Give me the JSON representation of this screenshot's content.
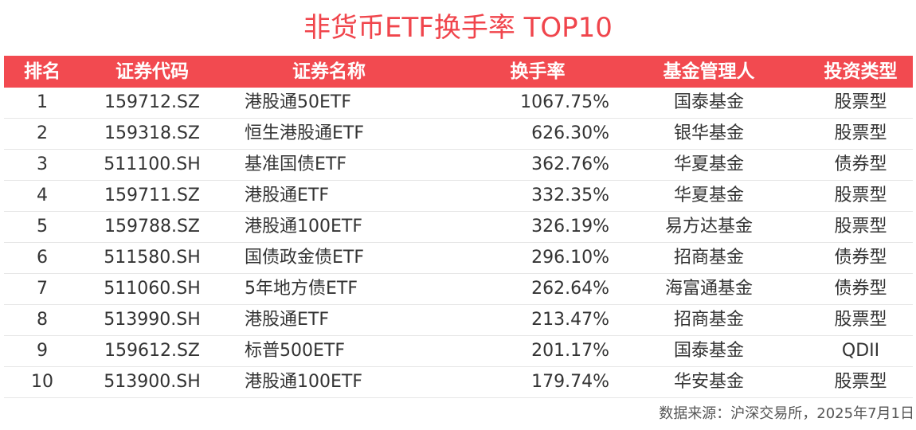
{
  "title": "非货币ETF换手率 TOP10",
  "headers": {
    "rank": "排名",
    "code": "证券代码",
    "name": "证券名称",
    "rate": "换手率",
    "manager": "基金管理人",
    "type": "投资类型"
  },
  "rows": [
    {
      "rank": "1",
      "code": "159712.SZ",
      "name": "港股通50ETF",
      "rate": "1067.75%",
      "manager": "国泰基金",
      "type": "股票型"
    },
    {
      "rank": "2",
      "code": "159318.SZ",
      "name": "恒生港股通ETF",
      "rate": "626.30%",
      "manager": "银华基金",
      "type": "股票型"
    },
    {
      "rank": "3",
      "code": "511100.SH",
      "name": "基准国债ETF",
      "rate": "362.76%",
      "manager": "华夏基金",
      "type": "债券型"
    },
    {
      "rank": "4",
      "code": "159711.SZ",
      "name": "港股通ETF",
      "rate": "332.35%",
      "manager": "华夏基金",
      "type": "股票型"
    },
    {
      "rank": "5",
      "code": "159788.SZ",
      "name": "港股通100ETF",
      "rate": "326.19%",
      "manager": "易方达基金",
      "type": "股票型"
    },
    {
      "rank": "6",
      "code": "511580.SH",
      "name": "国债政金债ETF",
      "rate": "296.10%",
      "manager": "招商基金",
      "type": "债券型"
    },
    {
      "rank": "7",
      "code": "511060.SH",
      "name": "5年地方债ETF",
      "rate": "262.64%",
      "manager": "海富通基金",
      "type": "债券型"
    },
    {
      "rank": "8",
      "code": "513990.SH",
      "name": "港股通ETF",
      "rate": "213.47%",
      "manager": "招商基金",
      "type": "股票型"
    },
    {
      "rank": "9",
      "code": "159612.SZ",
      "name": "标普500ETF",
      "rate": "201.17%",
      "manager": "国泰基金",
      "type": "QDII"
    },
    {
      "rank": "10",
      "code": "513900.SH",
      "name": "港股通100ETF",
      "rate": "179.74%",
      "manager": "华安基金",
      "type": "股票型"
    }
  ],
  "footer": "数据来源：沪深交易所，2025年7月1日",
  "colors": {
    "accent": "#f24a50",
    "title": "#f0454c"
  }
}
